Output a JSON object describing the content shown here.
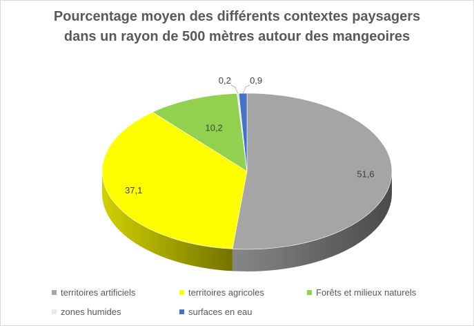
{
  "chart_data": {
    "type": "pie",
    "title": "Pourcentage moyen des différents contextes paysagers dans un rayon de 500 mètres autour des mangeoires",
    "categories": [
      "territoires artificiels",
      "territoires agricoles",
      "Forêts et milieux naturels",
      "zones humides",
      "surfaces en eau"
    ],
    "values": [
      51.6,
      37.1,
      10.2,
      0.2,
      0.9
    ],
    "data_labels": [
      "51,6",
      "37,1",
      "10,2",
      "0,2",
      "0,9"
    ],
    "colors": [
      "#a5a5a5",
      "#ffff00",
      "#92d050",
      "#ddebf7",
      "#4472c4"
    ],
    "legend_position": "bottom"
  }
}
